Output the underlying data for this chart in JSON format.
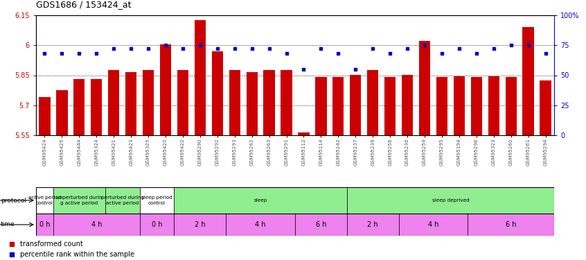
{
  "title": "GDS1686 / 153424_at",
  "samples": [
    "GSM95424",
    "GSM95425",
    "GSM95444",
    "GSM95324",
    "GSM95421",
    "GSM95423",
    "GSM95325",
    "GSM95420",
    "GSM95422",
    "GSM95290",
    "GSM95292",
    "GSM95293",
    "GSM95262",
    "GSM95263",
    "GSM95291",
    "GSM95112",
    "GSM95114",
    "GSM95242",
    "GSM95237",
    "GSM95239",
    "GSM95256",
    "GSM95236",
    "GSM95259",
    "GSM95295",
    "GSM95194",
    "GSM95296",
    "GSM95323",
    "GSM95260",
    "GSM95261",
    "GSM95294"
  ],
  "transformed_count": [
    5.74,
    5.775,
    5.83,
    5.83,
    5.875,
    5.865,
    5.875,
    6.005,
    5.875,
    6.125,
    5.97,
    5.875,
    5.865,
    5.875,
    5.875,
    5.565,
    5.84,
    5.84,
    5.85,
    5.875,
    5.84,
    5.85,
    6.02,
    5.84,
    5.845,
    5.84,
    5.845,
    5.84,
    6.09,
    5.825
  ],
  "percentile_rank": [
    68,
    68,
    68,
    68,
    72,
    72,
    72,
    75,
    72,
    75,
    72,
    72,
    72,
    72,
    68,
    55,
    72,
    68,
    55,
    72,
    68,
    72,
    75,
    68,
    72,
    68,
    72,
    75,
    75,
    68
  ],
  "ylim_left": [
    5.55,
    6.15
  ],
  "ylim_right": [
    0,
    100
  ],
  "yticks_left": [
    5.55,
    5.7,
    5.85,
    6.0,
    6.15
  ],
  "yticks_right": [
    0,
    25,
    50,
    75,
    100
  ],
  "ytick_labels_left": [
    "5.55",
    "5.7",
    "5.85",
    "6",
    "6.15"
  ],
  "ytick_labels_right": [
    "0",
    "25",
    "50",
    "75",
    "100%"
  ],
  "bar_color": "#cc0000",
  "dot_color": "#0000cc",
  "protocol_sections": [
    {
      "text": "active period\ncontrol",
      "start": 0,
      "end": 1,
      "color": "#ffffff"
    },
    {
      "text": "unperturbed durin\ng active period",
      "start": 1,
      "end": 4,
      "color": "#90ee90"
    },
    {
      "text": "perturbed during\nactive period",
      "start": 4,
      "end": 6,
      "color": "#90ee90"
    },
    {
      "text": "sleep period\ncontrol",
      "start": 6,
      "end": 8,
      "color": "#ffffff"
    },
    {
      "text": "sleep",
      "start": 8,
      "end": 18,
      "color": "#90ee90"
    },
    {
      "text": "sleep deprived",
      "start": 18,
      "end": 30,
      "color": "#90ee90"
    }
  ],
  "time_sections": [
    {
      "text": "0 h",
      "start": 0,
      "end": 1,
      "color": "#ee82ee"
    },
    {
      "text": "4 h",
      "start": 1,
      "end": 6,
      "color": "#ee82ee"
    },
    {
      "text": "0 h",
      "start": 6,
      "end": 8,
      "color": "#ee82ee"
    },
    {
      "text": "2 h",
      "start": 8,
      "end": 11,
      "color": "#ee82ee"
    },
    {
      "text": "4 h",
      "start": 11,
      "end": 15,
      "color": "#ee82ee"
    },
    {
      "text": "6 h",
      "start": 15,
      "end": 18,
      "color": "#ee82ee"
    },
    {
      "text": "2 h",
      "start": 18,
      "end": 21,
      "color": "#ee82ee"
    },
    {
      "text": "4 h",
      "start": 21,
      "end": 25,
      "color": "#ee82ee"
    },
    {
      "text": "6 h",
      "start": 25,
      "end": 30,
      "color": "#ee82ee"
    }
  ],
  "legend_items": [
    {
      "label": "transformed count",
      "color": "#cc0000"
    },
    {
      "label": "percentile rank within the sample",
      "color": "#0000cc"
    }
  ],
  "n_samples": 30,
  "fig_width": 8.46,
  "fig_height": 3.75,
  "dpi": 100
}
